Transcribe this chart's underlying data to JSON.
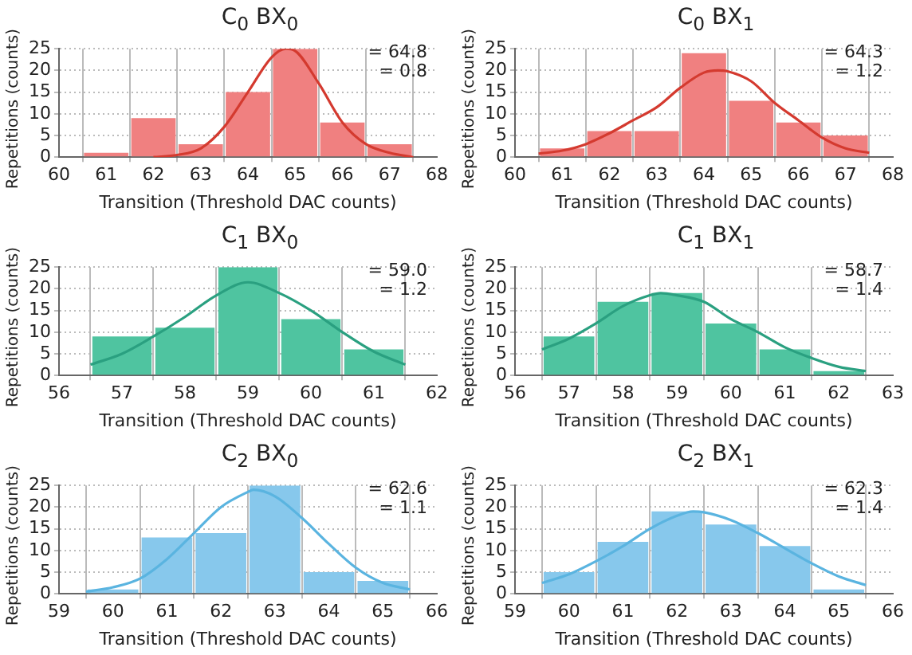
{
  "chart_data": [
    {
      "type": "histogram",
      "title": "C$_{0}$ BX$_{0}$",
      "xlabel": "Transition (Threshold DAC counts)",
      "ylabel": "Repetitions (counts)",
      "bins": [
        60.5,
        61.5,
        62.5,
        63.5,
        64.5,
        65.5,
        66.5,
        67.5
      ],
      "xlim": [
        60,
        68
      ],
      "xticks": [
        60,
        61,
        62,
        63,
        64,
        65,
        66,
        67,
        68
      ],
      "ylim": [
        0,
        25
      ],
      "yticks": [
        0,
        5,
        10,
        15,
        20,
        25
      ],
      "grid": true,
      "annotations": [
        "= 64.8",
        "= 0.8"
      ],
      "series": [
        {
          "color": "#f08080",
          "values": [
            1,
            9,
            3,
            15,
            25,
            8,
            3
          ]
        },
        {
          "type": "line",
          "color": "#d43a2f",
          "x": [
            62,
            62.5,
            63,
            63.5,
            64,
            64.5,
            64.8,
            65,
            65.5,
            66,
            66.5,
            67,
            67.5
          ],
          "values": [
            0,
            0.5,
            2,
            7,
            15,
            23,
            25,
            24.5,
            17,
            8,
            3,
            1,
            0
          ]
        }
      ]
    },
    {
      "type": "histogram",
      "title": "C$_{0}$ BX$_{1}$",
      "xlabel": "Transition (Threshold DAC counts)",
      "ylabel": "Repetitions (counts)",
      "bins": [
        60.5,
        61.5,
        62.5,
        63.5,
        64.5,
        65.5,
        66.5,
        67.5
      ],
      "xlim": [
        60,
        68
      ],
      "xticks": [
        60,
        61,
        62,
        63,
        64,
        65,
        66,
        67,
        68
      ],
      "ylim": [
        0,
        25
      ],
      "yticks": [
        0,
        5,
        10,
        15,
        20,
        25
      ],
      "grid": true,
      "annotations": [
        "= 64.3",
        "= 1.2"
      ],
      "series": [
        {
          "color": "#f08080",
          "values": [
            2,
            6,
            6,
            24,
            13,
            8,
            5
          ]
        },
        {
          "type": "line",
          "color": "#d43a2f",
          "x": [
            60.5,
            61,
            61.5,
            62,
            62.5,
            63,
            63.5,
            64,
            64.3,
            64.5,
            65,
            65.5,
            66,
            66.5,
            67,
            67.5
          ],
          "values": [
            0.8,
            1.5,
            3,
            5.5,
            8.5,
            11.5,
            16,
            19.5,
            20,
            19.8,
            17.5,
            12.5,
            8.5,
            4.5,
            2,
            1
          ]
        }
      ]
    },
    {
      "type": "histogram",
      "title": "C$_{1}$ BX$_{0}$",
      "xlabel": "Transition (Threshold DAC counts)",
      "ylabel": "Repetitions (counts)",
      "bins": [
        56.5,
        57.5,
        58.5,
        59.5,
        60.5,
        61.5
      ],
      "xlim": [
        56,
        62
      ],
      "xticks": [
        56,
        57,
        58,
        59,
        60,
        61,
        62
      ],
      "ylim": [
        0,
        25
      ],
      "yticks": [
        0,
        5,
        10,
        15,
        20,
        25
      ],
      "grid": true,
      "annotations": [
        "= 59.0",
        "= 1.2"
      ],
      "series": [
        {
          "color": "#4fc4a0",
          "values": [
            9,
            11,
            25,
            13,
            6
          ]
        },
        {
          "type": "line",
          "color": "#2aa080",
          "x": [
            56.5,
            57,
            57.5,
            58,
            58.5,
            59,
            59.5,
            60,
            60.5,
            61,
            61.5
          ],
          "values": [
            2.5,
            5,
            9,
            13.5,
            18.5,
            21.5,
            19,
            15,
            10,
            5.5,
            2.5
          ]
        }
      ]
    },
    {
      "type": "histogram",
      "title": "C$_{1}$ BX$_{1}$",
      "xlabel": "Transition (Threshold DAC counts)",
      "ylabel": "Repetitions (counts)",
      "bins": [
        56.5,
        57.5,
        58.5,
        59.5,
        60.5,
        61.5,
        62.5
      ],
      "xlim": [
        56,
        63
      ],
      "xticks": [
        56,
        57,
        58,
        59,
        60,
        61,
        62,
        63
      ],
      "ylim": [
        0,
        25
      ],
      "yticks": [
        0,
        5,
        10,
        15,
        20,
        25
      ],
      "grid": true,
      "annotations": [
        "= 58.7",
        "= 1.4"
      ],
      "series": [
        {
          "color": "#4fc4a0",
          "values": [
            9,
            17,
            19,
            12,
            6,
            1
          ]
        },
        {
          "type": "line",
          "color": "#2aa080",
          "x": [
            56.5,
            57,
            57.5,
            58,
            58.5,
            58.7,
            59,
            59.5,
            60,
            60.5,
            61,
            61.5,
            62,
            62.5
          ],
          "values": [
            6,
            8.5,
            12,
            16,
            18.5,
            19,
            18.5,
            17,
            13,
            10,
            6.5,
            4,
            2,
            1
          ]
        }
      ]
    },
    {
      "type": "histogram",
      "title": "C$_{2}$ BX$_{0}$",
      "xlabel": "Transition (Threshold DAC counts)",
      "ylabel": "Repetitions (counts)",
      "bins": [
        59.5,
        60.5,
        61.5,
        62.5,
        63.5,
        64.5,
        65.5
      ],
      "xlim": [
        59,
        66
      ],
      "xticks": [
        59,
        60,
        61,
        62,
        63,
        64,
        65,
        66
      ],
      "ylim": [
        0,
        25
      ],
      "yticks": [
        0,
        5,
        10,
        15,
        20,
        25
      ],
      "grid": true,
      "annotations": [
        "= 62.6",
        "= 1.1"
      ],
      "series": [
        {
          "color": "#87c8ec",
          "values": [
            1,
            13,
            14,
            25,
            5,
            3
          ]
        },
        {
          "type": "line",
          "color": "#5ab4e0",
          "x": [
            59.5,
            60,
            60.5,
            61,
            61.5,
            62,
            62.5,
            62.6,
            63,
            63.5,
            64,
            64.5,
            65,
            65.5
          ],
          "values": [
            0.5,
            1.5,
            3.5,
            8,
            14,
            20,
            23.5,
            24,
            22.5,
            17.5,
            11.5,
            6,
            2.5,
            1
          ]
        }
      ]
    },
    {
      "type": "histogram",
      "title": "C$_{2}$ BX$_{1}$",
      "xlabel": "Transition (Threshold DAC counts)",
      "ylabel": "Repetitions (counts)",
      "bins": [
        59.5,
        60.5,
        61.5,
        62.5,
        63.5,
        64.5,
        65.5
      ],
      "xlim": [
        59,
        66
      ],
      "xticks": [
        59,
        60,
        61,
        62,
        63,
        64,
        65,
        66
      ],
      "ylim": [
        0,
        25
      ],
      "yticks": [
        0,
        5,
        10,
        15,
        20,
        25
      ],
      "grid": true,
      "annotations": [
        "= 62.3",
        "= 1.4"
      ],
      "series": [
        {
          "color": "#87c8ec",
          "values": [
            5,
            12,
            19,
            16,
            11,
            1
          ]
        },
        {
          "type": "line",
          "color": "#5ab4e0",
          "x": [
            59.5,
            60,
            60.5,
            61,
            61.5,
            62,
            62.3,
            62.5,
            63,
            63.5,
            64,
            64.5,
            65,
            65.5
          ],
          "values": [
            2.5,
            4.5,
            7.5,
            11,
            15,
            18,
            19,
            18.8,
            17,
            14,
            10.5,
            7,
            4,
            2
          ]
        }
      ]
    }
  ]
}
